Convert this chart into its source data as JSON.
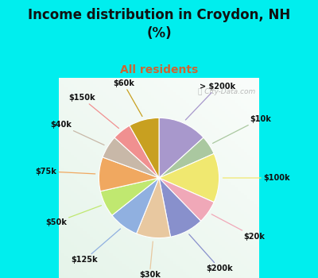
{
  "title": "Income distribution in Croydon, NH\n(%)",
  "subtitle": "All residents",
  "title_color": "#111111",
  "subtitle_color": "#cc6633",
  "background_color": "#00eeee",
  "chart_bg_colors": [
    "#ffffff",
    "#c8e8d0",
    "#b0ddc8"
  ],
  "watermark": "City-Data.com",
  "labels": [
    "> $200k",
    "$10k",
    "$100k",
    "$20k",
    "$200k",
    "$30k",
    "$125k",
    "$50k",
    "$75k",
    "$40k",
    "$150k",
    "$60k"
  ],
  "values": [
    13,
    5,
    13,
    6,
    9,
    9,
    8,
    7,
    9,
    6,
    5,
    8
  ],
  "colors": [
    "#a898cc",
    "#aac8a0",
    "#f0e870",
    "#f0a8b8",
    "#8890cc",
    "#e8c8a0",
    "#90b0e0",
    "#c0e870",
    "#f0a860",
    "#c8b8a8",
    "#f09090",
    "#c8a020"
  ],
  "label_angles_override": null,
  "figsize": [
    4.0,
    3.5
  ],
  "dpi": 100,
  "startangle": 90
}
